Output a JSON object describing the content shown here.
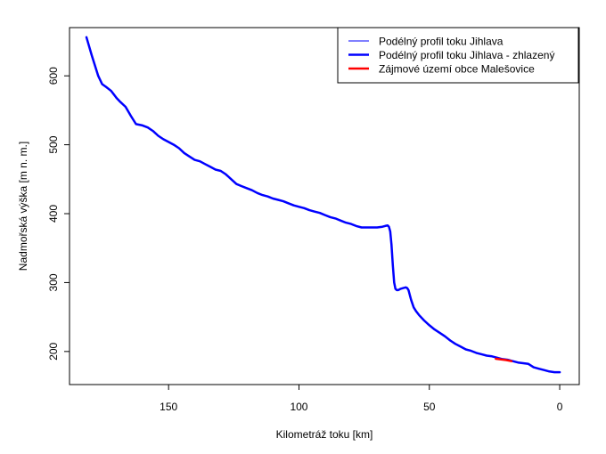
{
  "chart_data": {
    "type": "line",
    "title": "",
    "xlabel": "Kilometráž toku [km]",
    "ylabel": "Nadmořská výška [m n. m.]",
    "xlim": [
      188,
      -7.5
    ],
    "ylim": [
      152,
      670
    ],
    "x_reversed": true,
    "grid": false,
    "legend_position": "top-right",
    "xticks": [
      150,
      100,
      50,
      0
    ],
    "yticks": [
      200,
      300,
      400,
      500,
      600
    ],
    "legend": [
      {
        "label": "Podélný profil toku Jihlava",
        "color": "#0000ff",
        "width": 1
      },
      {
        "label": "Podélný profil toku Jihlava - zhlazený",
        "color": "#0000ff",
        "width": 2.5
      },
      {
        "label": "Zájmové území obce Malešovice",
        "color": "#ff0000",
        "width": 2.5
      }
    ],
    "series": [
      {
        "name": "Podélný profil toku Jihlava - zhlazený",
        "color": "#0000ff",
        "x": [
          181.5,
          179.5,
          177,
          175.5,
          174,
          172,
          170,
          168.5,
          166.5,
          164.5,
          162.5,
          160,
          158,
          156,
          154,
          152,
          150,
          148,
          146,
          144,
          142,
          140,
          138,
          136,
          134,
          132,
          130,
          128,
          126,
          124,
          122,
          120,
          118,
          116,
          114,
          112,
          110,
          108,
          106,
          104,
          102,
          100,
          98,
          96,
          94,
          92,
          90,
          88,
          86,
          84,
          82,
          80,
          78,
          76,
          74,
          72,
          70,
          68,
          67,
          66,
          65.5,
          65,
          64.5,
          64,
          63.5,
          63,
          62.5,
          62,
          61.5,
          61,
          60,
          59,
          58.5,
          58,
          57,
          56,
          55,
          54,
          52,
          50,
          48,
          46,
          44,
          42,
          40,
          38,
          36,
          34,
          32,
          30,
          28,
          26,
          24,
          22,
          20,
          18,
          16,
          14,
          12,
          10,
          8,
          6,
          4,
          2,
          0
        ],
        "values": [
          656,
          630,
          600,
          588,
          584,
          578,
          568,
          562,
          555,
          542,
          530,
          528,
          525,
          520,
          513,
          508,
          504,
          500,
          495,
          488,
          483,
          478,
          476,
          472,
          468,
          464,
          462,
          457,
          450,
          443,
          440,
          437,
          434,
          430,
          427,
          425,
          422,
          420,
          418,
          415,
          412,
          410,
          408,
          405,
          403,
          401,
          398,
          395,
          393,
          390,
          387,
          385,
          382,
          380,
          380,
          380,
          380,
          381,
          382,
          383,
          381,
          374,
          355,
          325,
          300,
          291,
          289,
          289,
          290,
          291,
          292,
          293,
          292,
          289,
          275,
          264,
          258,
          253,
          245,
          238,
          232,
          227,
          222,
          216,
          211,
          207,
          203,
          201,
          198,
          196,
          194,
          193,
          191,
          189,
          188,
          186,
          184,
          183,
          182,
          177,
          175,
          173,
          171,
          170,
          170
        ]
      },
      {
        "name": "Zájmové území obce Malešovice",
        "color": "#ff0000",
        "x": [
          24.5,
          22.5,
          20.5,
          18.5
        ],
        "values": [
          189.5,
          188.5,
          187.5,
          186
        ]
      }
    ]
  }
}
